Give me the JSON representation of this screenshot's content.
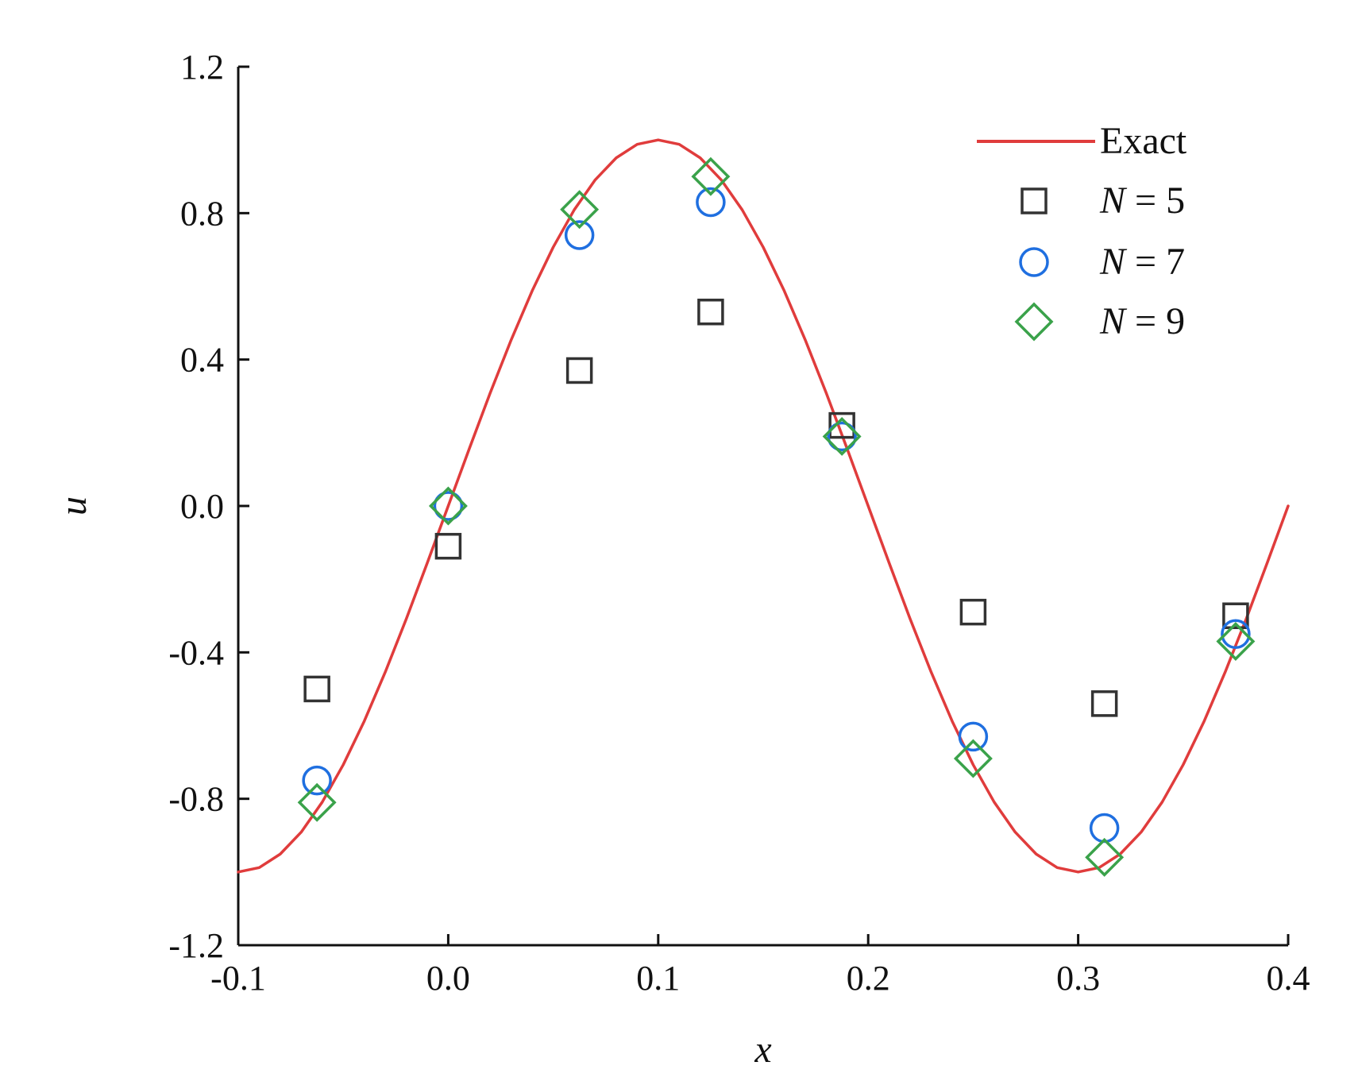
{
  "chart_data": {
    "type": "line",
    "title": "",
    "xlabel": "x",
    "ylabel": "u",
    "xlim": [
      -0.1,
      0.4
    ],
    "ylim": [
      -1.2,
      1.2
    ],
    "xticks": [
      -0.1,
      0.0,
      0.1,
      0.2,
      0.3,
      0.4
    ],
    "xtick_labels": [
      "-0.1",
      "0.0",
      "0.1",
      "0.2",
      "0.3",
      "0.4"
    ],
    "yticks": [
      -1.2,
      -0.8,
      -0.4,
      0.0,
      0.4,
      0.8,
      1.2
    ],
    "ytick_labels": [
      "-1.2",
      "-0.8",
      "-0.4",
      "0.0",
      "0.4",
      "0.8",
      "1.2"
    ],
    "grid": false,
    "legend_position": "top-right",
    "series": [
      {
        "name": "Exact",
        "kind": "line",
        "color": "#e03c3c",
        "x": [
          -0.1,
          -0.09,
          -0.08,
          -0.07,
          -0.06,
          -0.05,
          -0.04,
          -0.03,
          -0.02,
          -0.01,
          0.0,
          0.01,
          0.02,
          0.03,
          0.04,
          0.05,
          0.06,
          0.07,
          0.08,
          0.09,
          0.1,
          0.11,
          0.12,
          0.13,
          0.14,
          0.15,
          0.16,
          0.17,
          0.18,
          0.19,
          0.2,
          0.21,
          0.22,
          0.23,
          0.24,
          0.25,
          0.26,
          0.27,
          0.28,
          0.29,
          0.3,
          0.31,
          0.32,
          0.33,
          0.34,
          0.35,
          0.36,
          0.37,
          0.38,
          0.39,
          0.4
        ],
        "y": [
          -1.0,
          -0.988,
          -0.951,
          -0.891,
          -0.809,
          -0.707,
          -0.588,
          -0.454,
          -0.309,
          -0.156,
          0.0,
          0.156,
          0.309,
          0.454,
          0.588,
          0.707,
          0.809,
          0.891,
          0.951,
          0.988,
          1.0,
          0.988,
          0.951,
          0.891,
          0.809,
          0.707,
          0.588,
          0.454,
          0.309,
          0.156,
          0.0,
          -0.156,
          -0.309,
          -0.454,
          -0.588,
          -0.707,
          -0.809,
          -0.891,
          -0.951,
          -0.988,
          -1.0,
          -0.988,
          -0.951,
          -0.891,
          -0.809,
          -0.707,
          -0.588,
          -0.454,
          -0.309,
          -0.156,
          0.0
        ]
      },
      {
        "name_prefix": "N",
        "name_suffix": " = 5",
        "kind": "markers",
        "marker": "square",
        "color": "#333333",
        "x": [
          -0.0625,
          0.0,
          0.0625,
          0.125,
          0.1875,
          0.25,
          0.3125,
          0.375
        ],
        "y": [
          -0.5,
          -0.11,
          0.37,
          0.53,
          0.22,
          -0.29,
          -0.54,
          -0.3
        ]
      },
      {
        "name_prefix": "N",
        "name_suffix": " = 7",
        "kind": "markers",
        "marker": "circle",
        "color": "#1f6fe0",
        "x": [
          -0.0625,
          0.0,
          0.0625,
          0.125,
          0.1875,
          0.25,
          0.3125,
          0.375
        ],
        "y": [
          -0.75,
          0.0,
          0.74,
          0.83,
          0.19,
          -0.63,
          -0.88,
          -0.35
        ]
      },
      {
        "name_prefix": "N",
        "name_suffix": " = 9",
        "kind": "markers",
        "marker": "diamond",
        "color": "#3aa24a",
        "x": [
          -0.0625,
          0.0,
          0.0625,
          0.125,
          0.1875,
          0.25,
          0.3125,
          0.375
        ],
        "y": [
          -0.81,
          0.0,
          0.81,
          0.9,
          0.19,
          -0.69,
          -0.96,
          -0.37
        ]
      }
    ]
  }
}
